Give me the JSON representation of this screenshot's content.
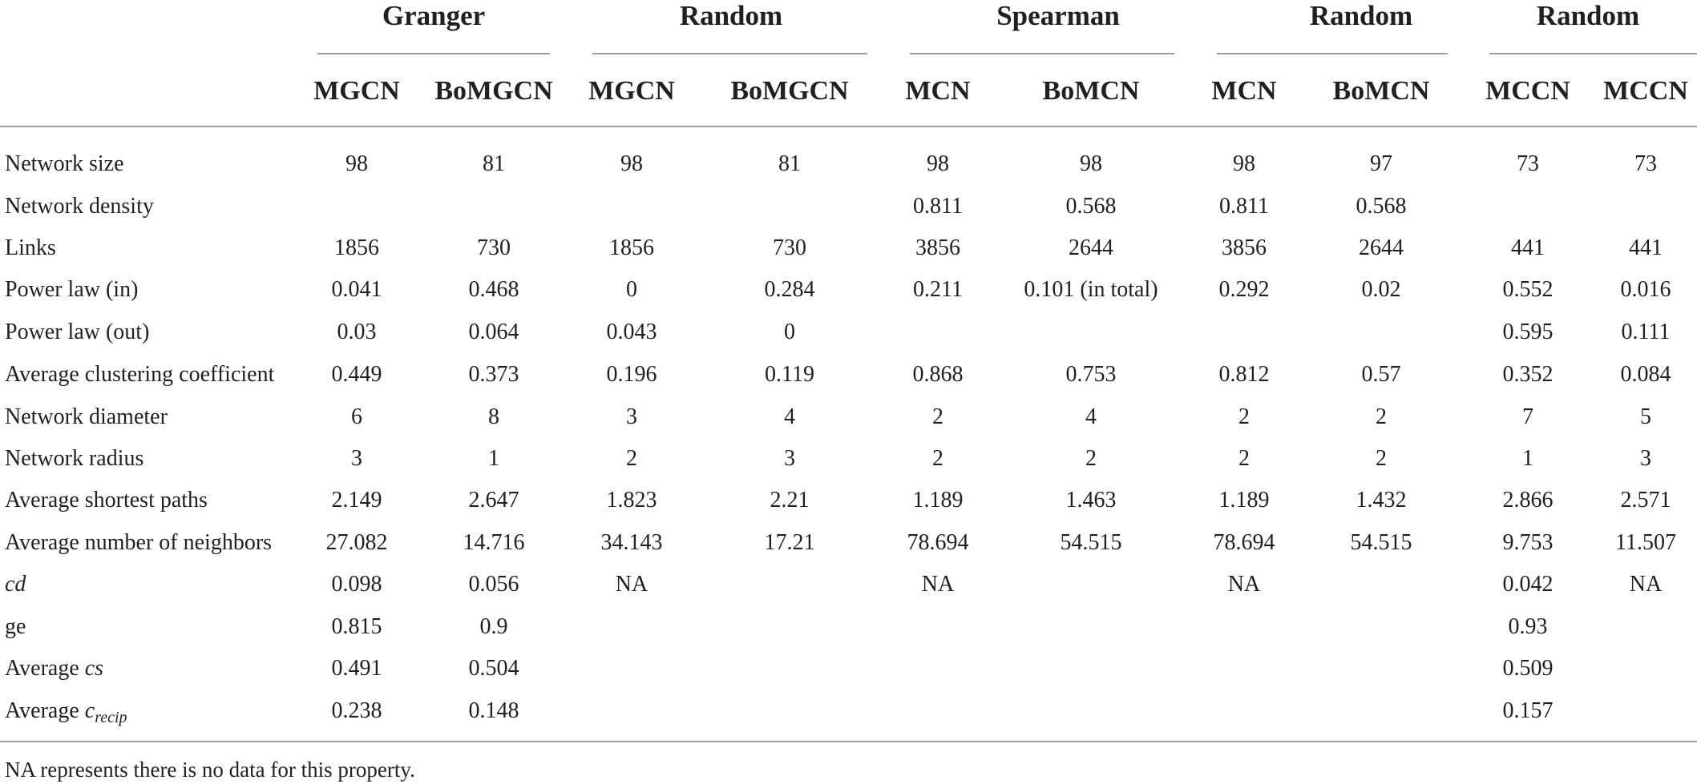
{
  "groups": [
    "Granger",
    "Random",
    "Spearman",
    "Random",
    "Random"
  ],
  "columns": [
    "MGCN",
    "BoMGCN",
    "MGCN",
    "BoMGCN",
    "MCN",
    "BoMCN",
    "MCN",
    "BoMCN",
    "MCCN",
    "MCCN"
  ],
  "rows": [
    {
      "label": "Network size",
      "values": [
        "98",
        "81",
        "98",
        "81",
        "98",
        "98",
        "98",
        "97",
        "73",
        "73"
      ]
    },
    {
      "label": "Network density",
      "values": [
        "",
        "",
        "",
        "",
        "0.811",
        "0.568",
        "0.811",
        "0.568",
        "",
        ""
      ]
    },
    {
      "label": "Links",
      "values": [
        "1856",
        "730",
        "1856",
        "730",
        "3856",
        "2644",
        "3856",
        "2644",
        "441",
        "441"
      ]
    },
    {
      "label": "Power law (in)",
      "values": [
        "0.041",
        "0.468",
        "0",
        "0.284",
        "0.211",
        "0.101 (in total)",
        "0.292",
        "0.02",
        "0.552",
        "0.016"
      ]
    },
    {
      "label": "Power law (out)",
      "values": [
        "0.03",
        "0.064",
        "0.043",
        "0",
        "",
        "",
        "",
        "",
        "0.595",
        "0.111"
      ]
    },
    {
      "label": "Average clustering coefficient",
      "values": [
        "0.449",
        "0.373",
        "0.196",
        "0.119",
        "0.868",
        "0.753",
        "0.812",
        "0.57",
        "0.352",
        "0.084"
      ]
    },
    {
      "label": "Network diameter",
      "values": [
        "6",
        "8",
        "3",
        "4",
        "2",
        "4",
        "2",
        "2",
        "7",
        "5"
      ]
    },
    {
      "label": "Network radius",
      "values": [
        "3",
        "1",
        "2",
        "3",
        "2",
        "2",
        "2",
        "2",
        "1",
        "3"
      ]
    },
    {
      "label": "Average shortest paths",
      "values": [
        "2.149",
        "2.647",
        "1.823",
        "2.21",
        "1.189",
        "1.463",
        "1.189",
        "1.432",
        "2.866",
        "2.571"
      ]
    },
    {
      "label": "Average number of neighbors",
      "values": [
        "27.082",
        "14.716",
        "34.143",
        "17.21",
        "78.694",
        "54.515",
        "78.694",
        "54.515",
        "9.753",
        "11.507"
      ]
    },
    {
      "label": "cd",
      "values": [
        "0.098",
        "0.056",
        "NA",
        "",
        "NA",
        "",
        "NA",
        "",
        "0.042",
        "NA"
      ]
    },
    {
      "label": "ge",
      "values": [
        "0.815",
        "0.9",
        "",
        "",
        "",
        "",
        "",
        "",
        "0.93",
        ""
      ]
    },
    {
      "label": "Average cs",
      "values": [
        "0.491",
        "0.504",
        "",
        "",
        "",
        "",
        "",
        "",
        "0.509",
        ""
      ]
    },
    {
      "label": "Average c_recip",
      "values": [
        "0.238",
        "0.148",
        "",
        "",
        "",
        "",
        "",
        "",
        "0.157",
        ""
      ]
    }
  ],
  "footnote": "NA represents there is no data for this property."
}
